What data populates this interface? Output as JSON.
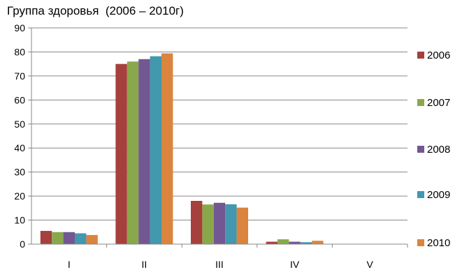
{
  "chart_data": {
    "type": "bar",
    "title": "Группа здоровья  (2006 – 2010г)",
    "xlabel": "",
    "ylabel": "",
    "categories": [
      "I",
      "II",
      "III",
      "IV",
      "V"
    ],
    "ylim": [
      0,
      90
    ],
    "yticks": [
      0,
      10,
      20,
      30,
      40,
      50,
      60,
      70,
      80,
      90
    ],
    "grid": true,
    "legend_position": "right",
    "series": [
      {
        "name": "2006",
        "color": "#A5403D",
        "values": [
          5.5,
          75,
          18,
          1,
          0
        ]
      },
      {
        "name": "2007",
        "color": "#8AA84B",
        "values": [
          5,
          76,
          16.5,
          2,
          0
        ]
      },
      {
        "name": "2008",
        "color": "#735792",
        "values": [
          5,
          77,
          17.2,
          1,
          0
        ]
      },
      {
        "name": "2009",
        "color": "#4198AF",
        "values": [
          4.5,
          78.2,
          16.6,
          0.8,
          0
        ]
      },
      {
        "name": "2010",
        "color": "#DB843D",
        "values": [
          3.8,
          79.4,
          15.2,
          1.4,
          0
        ]
      }
    ]
  }
}
